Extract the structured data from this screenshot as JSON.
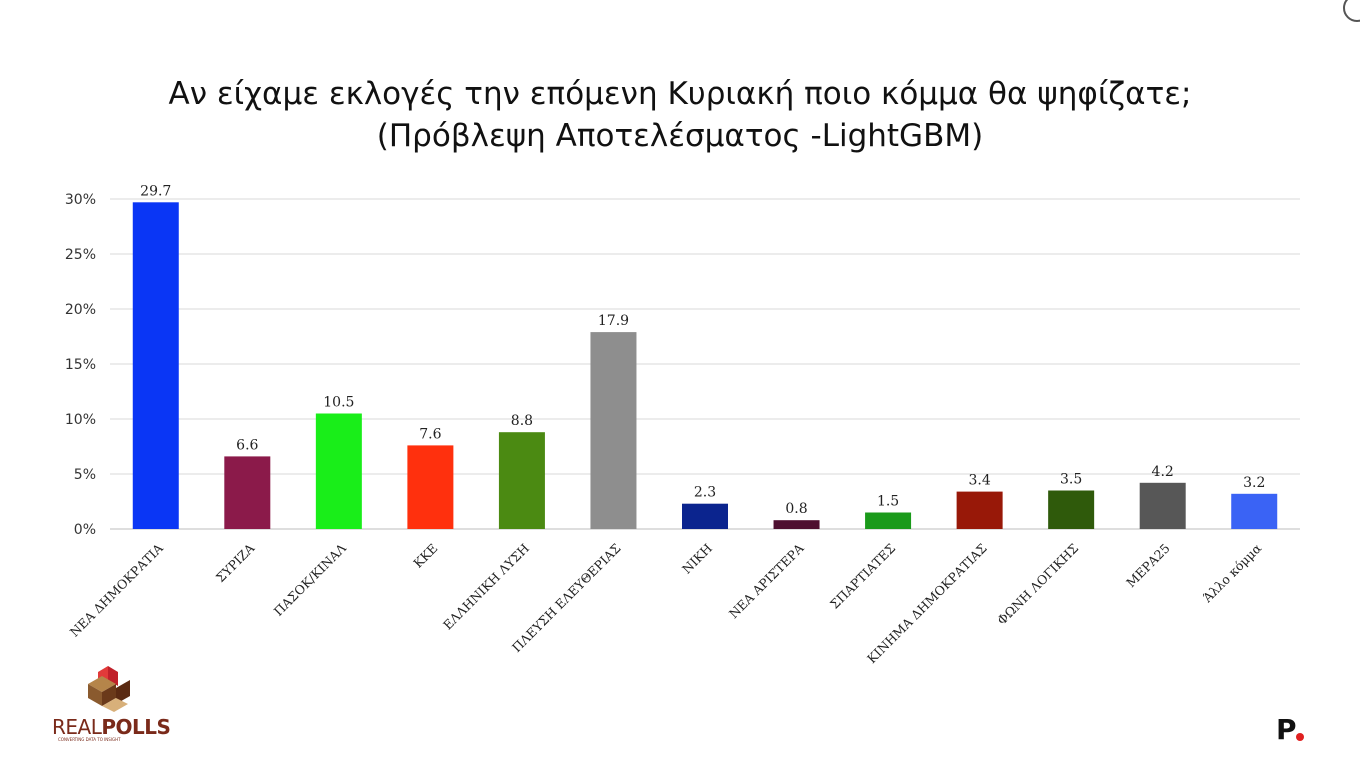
{
  "title_line1": "Αν είχαμε εκλογές την επόμενη Κυριακή ποιο κόμμα θα ψηφίζατε;",
  "title_line2": "(Πρόβλεψη Αποτελέσματος -LightGBM)",
  "logo": {
    "name_light": "REAL",
    "name_bold": "POLLS",
    "tagline": "CONVERTING DATA TO INSIGHT"
  },
  "brand_mark": "P",
  "chart_data": {
    "type": "bar",
    "title": "Αν είχαμε εκλογές την επόμενη Κυριακή ποιο κόμμα θα ψηφίζατε;",
    "subtitle": "(Πρόβλεψη Αποτελέσματος -LightGBM)",
    "ylim": [
      0,
      30
    ],
    "yticks": [
      "0%",
      "5%",
      "10%",
      "15%",
      "20%",
      "25%",
      "30%"
    ],
    "ytick_values": [
      0,
      5,
      10,
      15,
      20,
      25,
      30
    ],
    "grid": true,
    "legend": "none",
    "categories": [
      "ΝΕΑ ΔΗΜΟΚΡΑΤΙΑ",
      "ΣΥΡΙΖΑ",
      "ΠΑΣΟΚ/ΚΙΝΑΛ",
      "ΚΚΕ",
      "ΕΛΛΗΝΙΚΗ ΛΥΣΗ",
      "ΠΛΕΥΣΗ ΕΛΕΥΘΕΡΙΑΣ",
      "ΝΙΚΗ",
      "ΝΕΑ ΑΡΙΣΤΕΡΑ",
      "ΣΠΑΡΤΙΑΤΕΣ",
      "ΚΙΝΗΜΑ ΔΗΜΟΚΡΑΤΙΑΣ",
      "ΦΩΝΗ ΛΟΓΙΚΗΣ",
      "ΜΕΡΑ25",
      "Άλλο κόμμα"
    ],
    "values": [
      29.7,
      6.6,
      10.5,
      7.6,
      8.8,
      17.9,
      2.3,
      0.8,
      1.5,
      3.4,
      3.5,
      4.2,
      3.2
    ],
    "value_labels": [
      "29.7",
      "6.6",
      "10.5",
      "7.6",
      "8.8",
      "17.9",
      "2.3",
      "0.8",
      "1.5",
      "3.4",
      "3.5",
      "4.2",
      "3.2"
    ],
    "colors": [
      "#0a36f5",
      "#8b1a4a",
      "#19ee19",
      "#ff300d",
      "#4b8a12",
      "#8e8e8e",
      "#0b248e",
      "#4e1030",
      "#1a9a1a",
      "#981808",
      "#2f5a0b",
      "#575757",
      "#3a63f5"
    ]
  }
}
